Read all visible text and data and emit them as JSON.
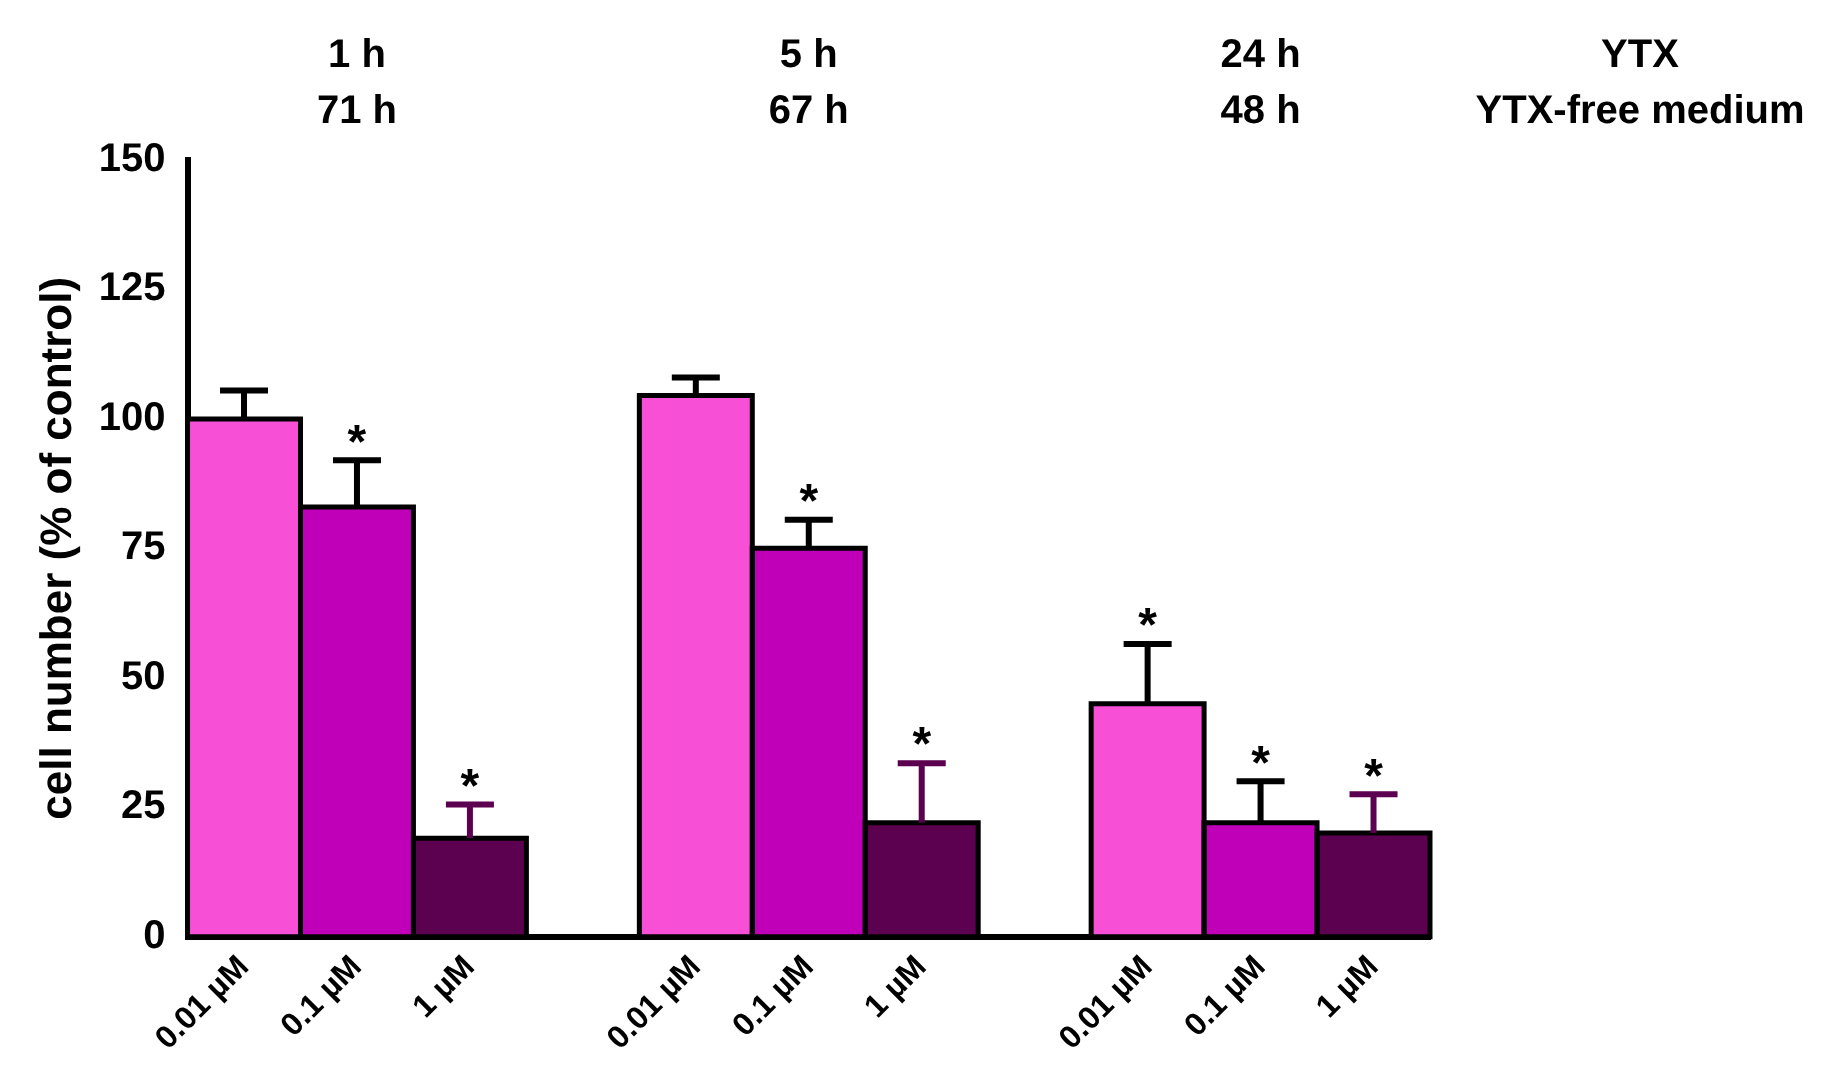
{
  "chart_data": {
    "type": "bar",
    "ylabel": "cell number (% of control)",
    "categories": [
      "0.01 µM",
      "0.1 µM",
      "1 µM",
      null,
      "0.01 µM",
      "0.1 µM",
      "1 µM",
      null,
      "0.01 µM",
      "0.1 µM",
      "1 µM"
    ],
    "values": [
      100,
      83,
      19,
      null,
      104.5,
      75,
      22,
      null,
      45,
      22,
      20
    ],
    "colors": [
      "#f74fd6",
      "#c000b8",
      "#5c0050",
      null,
      "#f74fd6",
      "#c000b8",
      "#5c0050",
      null,
      "#f74fd6",
      "#c000b8",
      "#5c0050"
    ],
    "errors": [
      [
        100,
        105.5
      ],
      [
        83,
        92
      ],
      [
        19,
        25.5
      ],
      null,
      [
        104.5,
        108
      ],
      [
        75,
        80.5
      ],
      [
        22,
        33.5
      ],
      null,
      [
        45,
        56.5
      ],
      [
        22,
        30
      ],
      [
        20,
        27.5
      ]
    ],
    "value_labels": [
      null,
      "*",
      "*",
      null,
      null,
      "*",
      "*",
      null,
      "*",
      "*",
      "*"
    ],
    "ylim": [
      0,
      150
    ],
    "yticks": [
      0,
      25,
      50,
      75,
      100,
      125,
      150
    ],
    "annotations": [
      "1 h",
      "5 h",
      "24 h",
      "YTX",
      "71 h",
      "67 h",
      "48 h",
      "YTX-free medium"
    ]
  }
}
